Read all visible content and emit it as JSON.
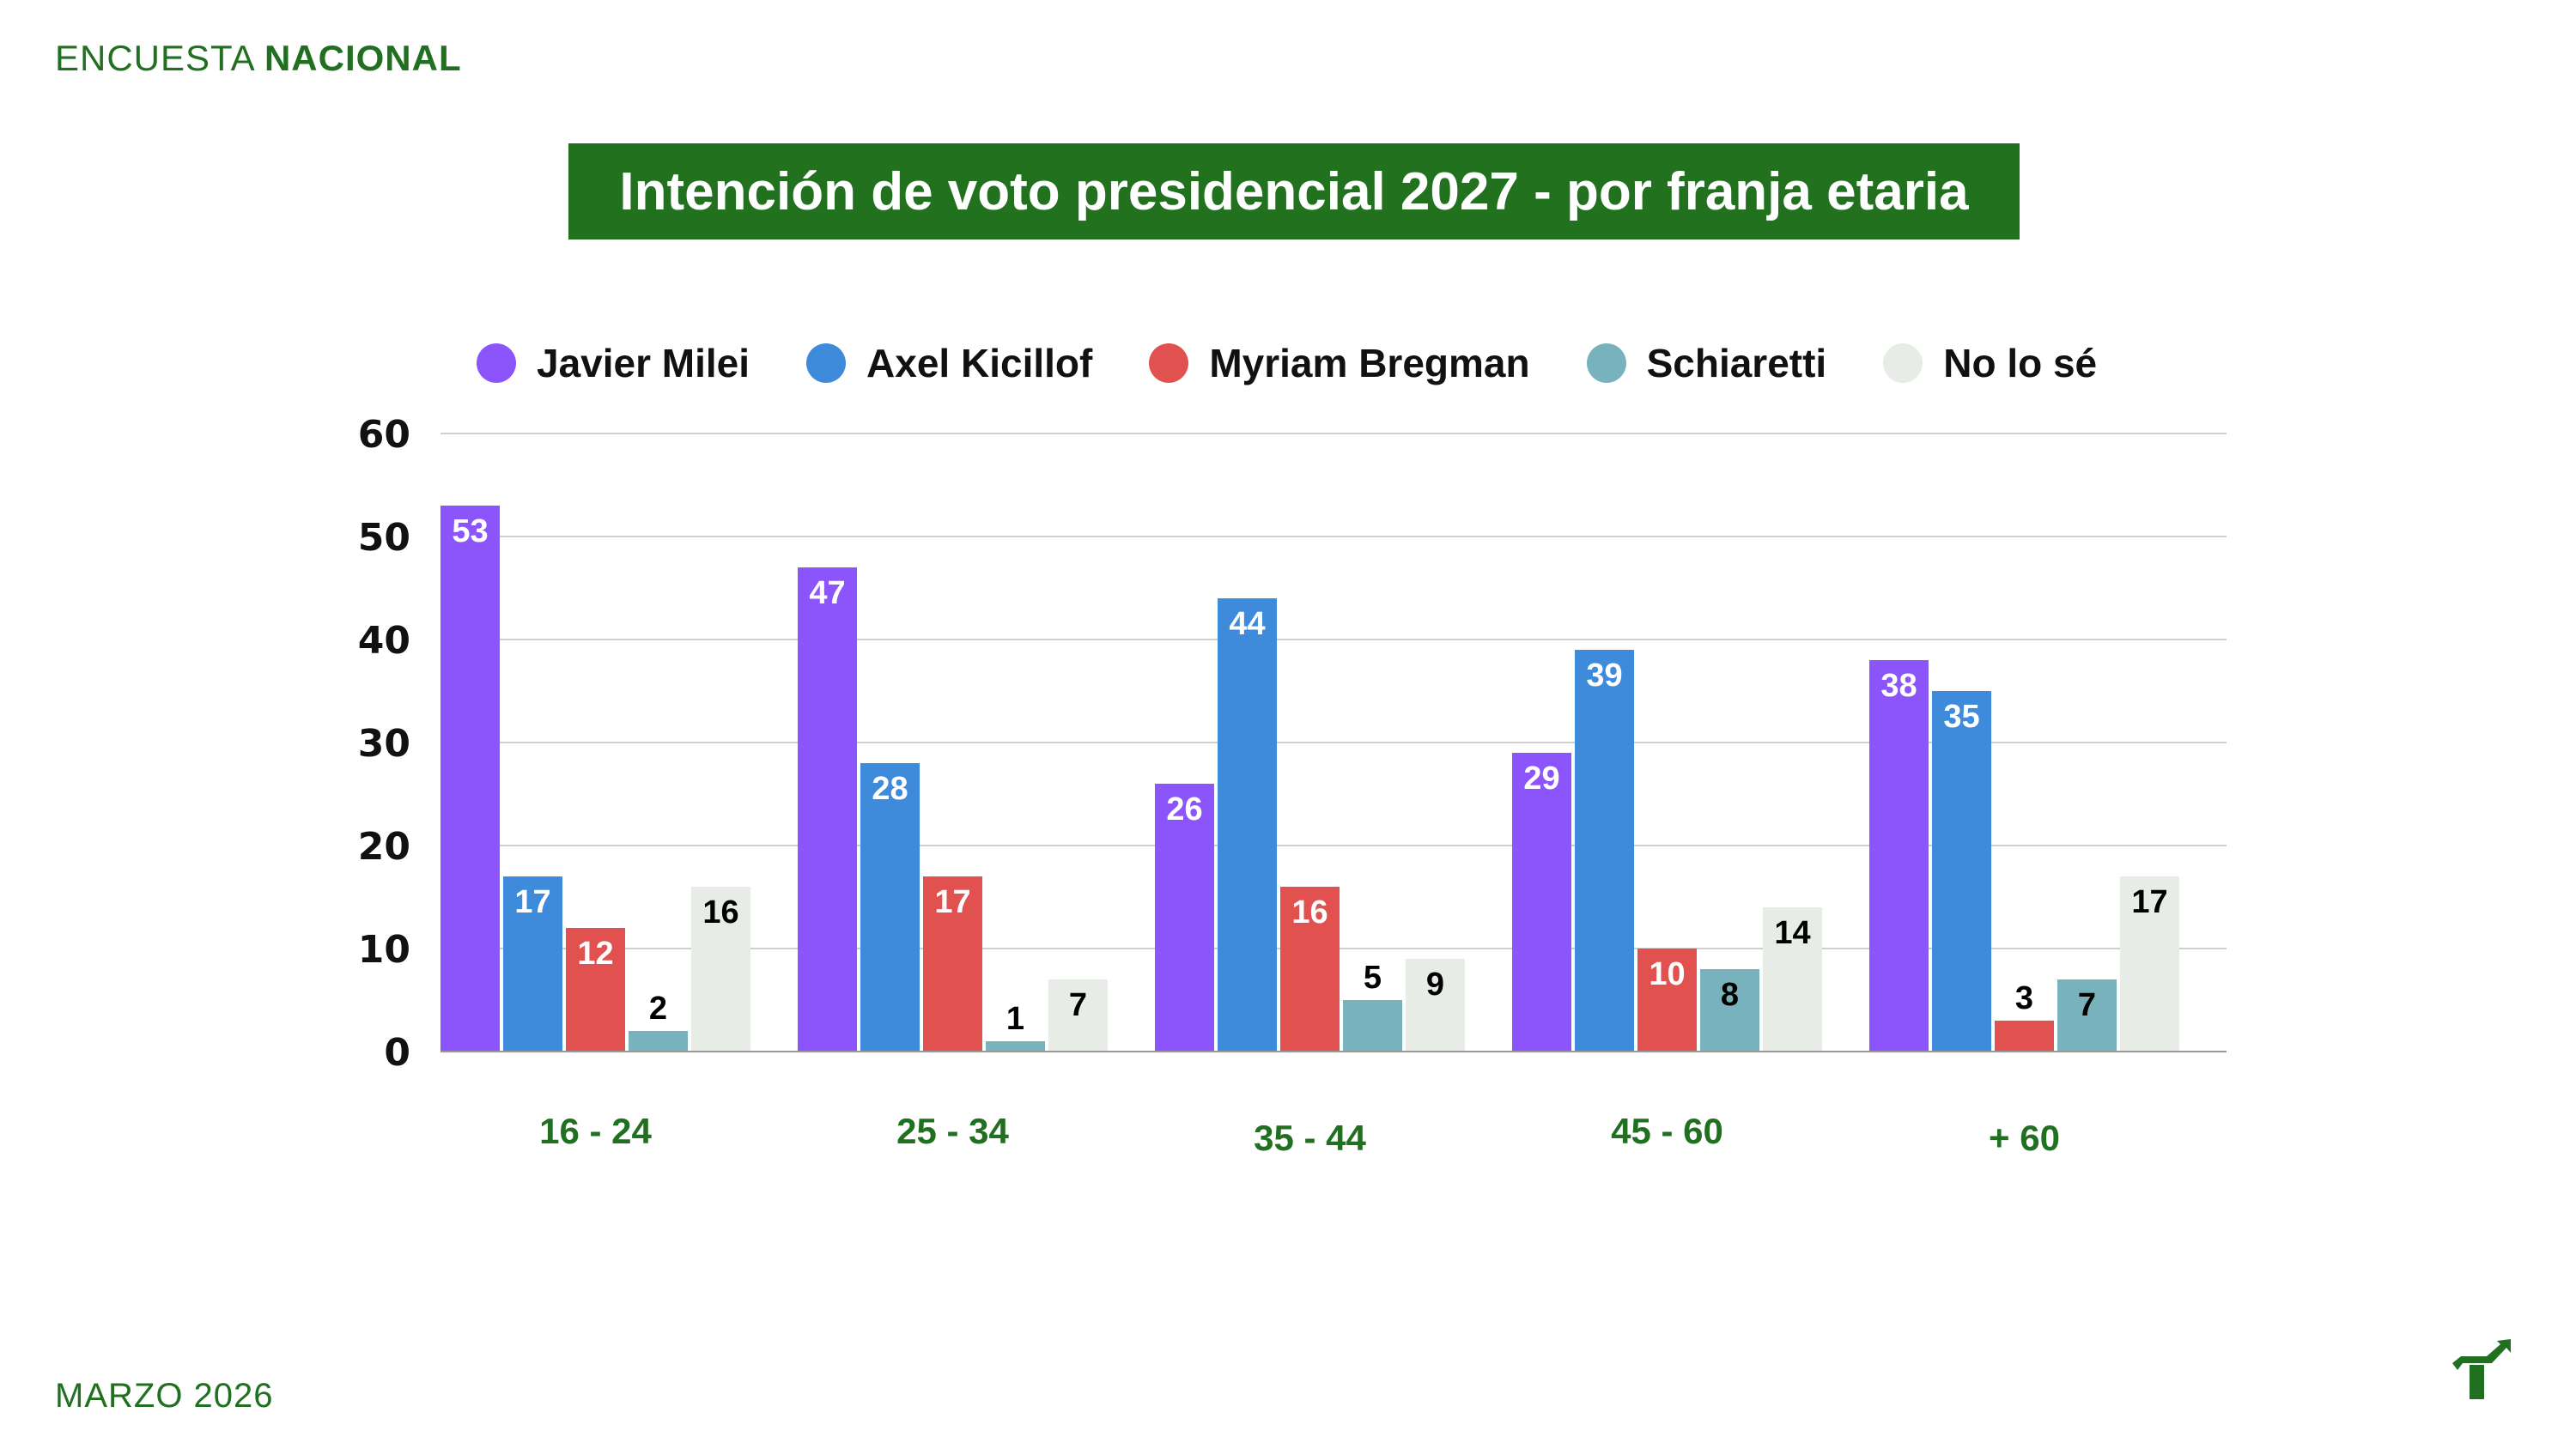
{
  "header": {
    "brand_light": "ENCUESTA",
    "brand_bold": "NACIONAL"
  },
  "footer": {
    "date": "MARZO 2026",
    "logo_icon": "trend-arrow-t-logo-icon"
  },
  "colors": {
    "brand_green": "#217021",
    "title_bg": "#21711f",
    "grid": "#cfcfcf",
    "axis_label_green": "#217021"
  },
  "chart_data": {
    "type": "bar",
    "title": "Intención de voto presidencial 2027 - por franja etaria",
    "xlabel": "",
    "ylabel": "",
    "ylim": [
      0,
      60
    ],
    "yticks": [
      0,
      10,
      20,
      30,
      40,
      50,
      60
    ],
    "grid": true,
    "legend_position": "top",
    "categories": [
      "16 - 24",
      "25 - 34",
      "35 - 44",
      "45 - 60",
      "+ 60"
    ],
    "series": [
      {
        "name": "Javier Milei",
        "color": "#8c55fb",
        "label_color": "#ffffff",
        "values": [
          53,
          47,
          26,
          29,
          38
        ]
      },
      {
        "name": "Axel Kicillof",
        "color": "#3f8bdb",
        "label_color": "#ffffff",
        "values": [
          17,
          28,
          44,
          39,
          35
        ]
      },
      {
        "name": "Myriam Bregman",
        "color": "#e05150",
        "label_color": "#ffffff",
        "values": [
          12,
          17,
          16,
          10,
          3
        ]
      },
      {
        "name": "Schiaretti",
        "color": "#77b2bd",
        "label_color": "#000000",
        "values": [
          2,
          1,
          5,
          8,
          7
        ]
      },
      {
        "name": "No lo sé",
        "color": "#e7ece7",
        "label_color": "#000000",
        "values": [
          16,
          7,
          9,
          14,
          17
        ]
      }
    ]
  }
}
